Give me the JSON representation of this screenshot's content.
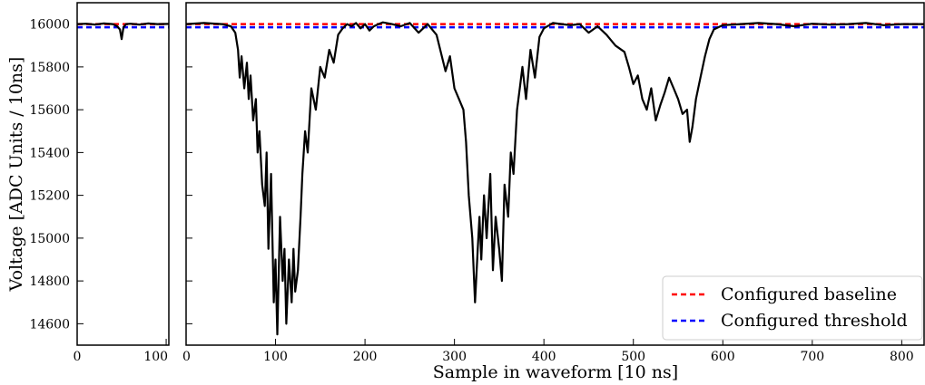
{
  "chart_data": {
    "type": "line",
    "title": "",
    "ylabel": "Voltage [ADC Units / 10ns]",
    "xlabel": "Sample in waveform [10 ns]",
    "ylim": [
      14500,
      16100
    ],
    "yticks": [
      14600,
      14800,
      15000,
      15200,
      15400,
      15600,
      15800,
      16000
    ],
    "grid": false,
    "legend": {
      "placement": "lower-right",
      "entries": [
        {
          "label": "Configured baseline",
          "color": "#ff0000",
          "style": "dashed"
        },
        {
          "label": "Configured threshold",
          "color": "#0000ff",
          "style": "dashed"
        }
      ]
    },
    "baseline": 16000,
    "threshold": 15985,
    "panels": [
      {
        "name": "left",
        "xlim": [
          0,
          103
        ],
        "xticks": [
          0,
          100
        ],
        "series": [
          {
            "color": "#000000",
            "x": [
              0,
              10,
              20,
              30,
              40,
              45,
              48,
              50,
              52,
              55,
              60,
              70,
              80,
              90,
              103
            ],
            "y": [
              16000,
              16002,
              15998,
              16003,
              16000,
              15990,
              15975,
              15930,
              15985,
              16000,
              16002,
              15998,
              16003,
              16000,
              16001
            ]
          }
        ]
      },
      {
        "name": "right",
        "xlim": [
          0,
          825
        ],
        "xticks": [
          0,
          100,
          200,
          300,
          400,
          500,
          600,
          700,
          800
        ],
        "series": [
          {
            "color": "#000000",
            "x": [
              0,
              20,
              40,
              50,
              55,
              58,
              60,
              62,
              65,
              68,
              70,
              72,
              75,
              78,
              80,
              82,
              85,
              88,
              90,
              92,
              95,
              98,
              100,
              102,
              105,
              108,
              110,
              112,
              115,
              118,
              120,
              122,
              125,
              128,
              130,
              133,
              136,
              140,
              145,
              150,
              155,
              160,
              165,
              170,
              175,
              180,
              185,
              190,
              195,
              200,
              205,
              210,
              215,
              220,
              230,
              240,
              250,
              260,
              270,
              280,
              290,
              295,
              300,
              305,
              310,
              313,
              316,
              320,
              323,
              326,
              328,
              330,
              333,
              336,
              340,
              343,
              346,
              350,
              353,
              356,
              360,
              363,
              366,
              370,
              373,
              376,
              380,
              385,
              390,
              395,
              400,
              410,
              420,
              430,
              440,
              450,
              460,
              470,
              480,
              490,
              495,
              500,
              505,
              510,
              515,
              520,
              525,
              530,
              535,
              540,
              545,
              550,
              555,
              560,
              563,
              566,
              570,
              575,
              580,
              585,
              590,
              600,
              620,
              640,
              660,
              680,
              700,
              720,
              740,
              760,
              780,
              800,
              825
            ],
            "y": [
              16000,
              16005,
              16000,
              15990,
              15960,
              15880,
              15750,
              15850,
              15700,
              15820,
              15650,
              15760,
              15550,
              15650,
              15400,
              15500,
              15250,
              15150,
              15400,
              14950,
              15300,
              14700,
              14900,
              14550,
              15100,
              14800,
              14950,
              14600,
              14900,
              14700,
              14950,
              14750,
              14850,
              15100,
              15300,
              15500,
              15400,
              15700,
              15600,
              15800,
              15750,
              15880,
              15820,
              15950,
              15980,
              16000,
              15990,
              16005,
              15980,
              16000,
              15970,
              15990,
              16000,
              16008,
              16000,
              15990,
              16005,
              15960,
              16000,
              15950,
              15780,
              15850,
              15700,
              15650,
              15600,
              15450,
              15200,
              15000,
              14700,
              14950,
              15100,
              14900,
              15200,
              15000,
              15300,
              14850,
              15100,
              14950,
              14800,
              15250,
              15100,
              15400,
              15300,
              15600,
              15700,
              15800,
              15650,
              15880,
              15750,
              15940,
              15980,
              16005,
              16000,
              15995,
              16000,
              15960,
              15990,
              15950,
              15900,
              15870,
              15800,
              15720,
              15760,
              15650,
              15600,
              15700,
              15550,
              15620,
              15680,
              15750,
              15700,
              15650,
              15580,
              15600,
              15450,
              15520,
              15650,
              15750,
              15850,
              15930,
              15975,
              15995,
              16000,
              16005,
              16000,
              15990,
              16002,
              15998,
              16000,
              16005,
              15995,
              16000,
              16000
            ]
          }
        ]
      }
    ]
  }
}
